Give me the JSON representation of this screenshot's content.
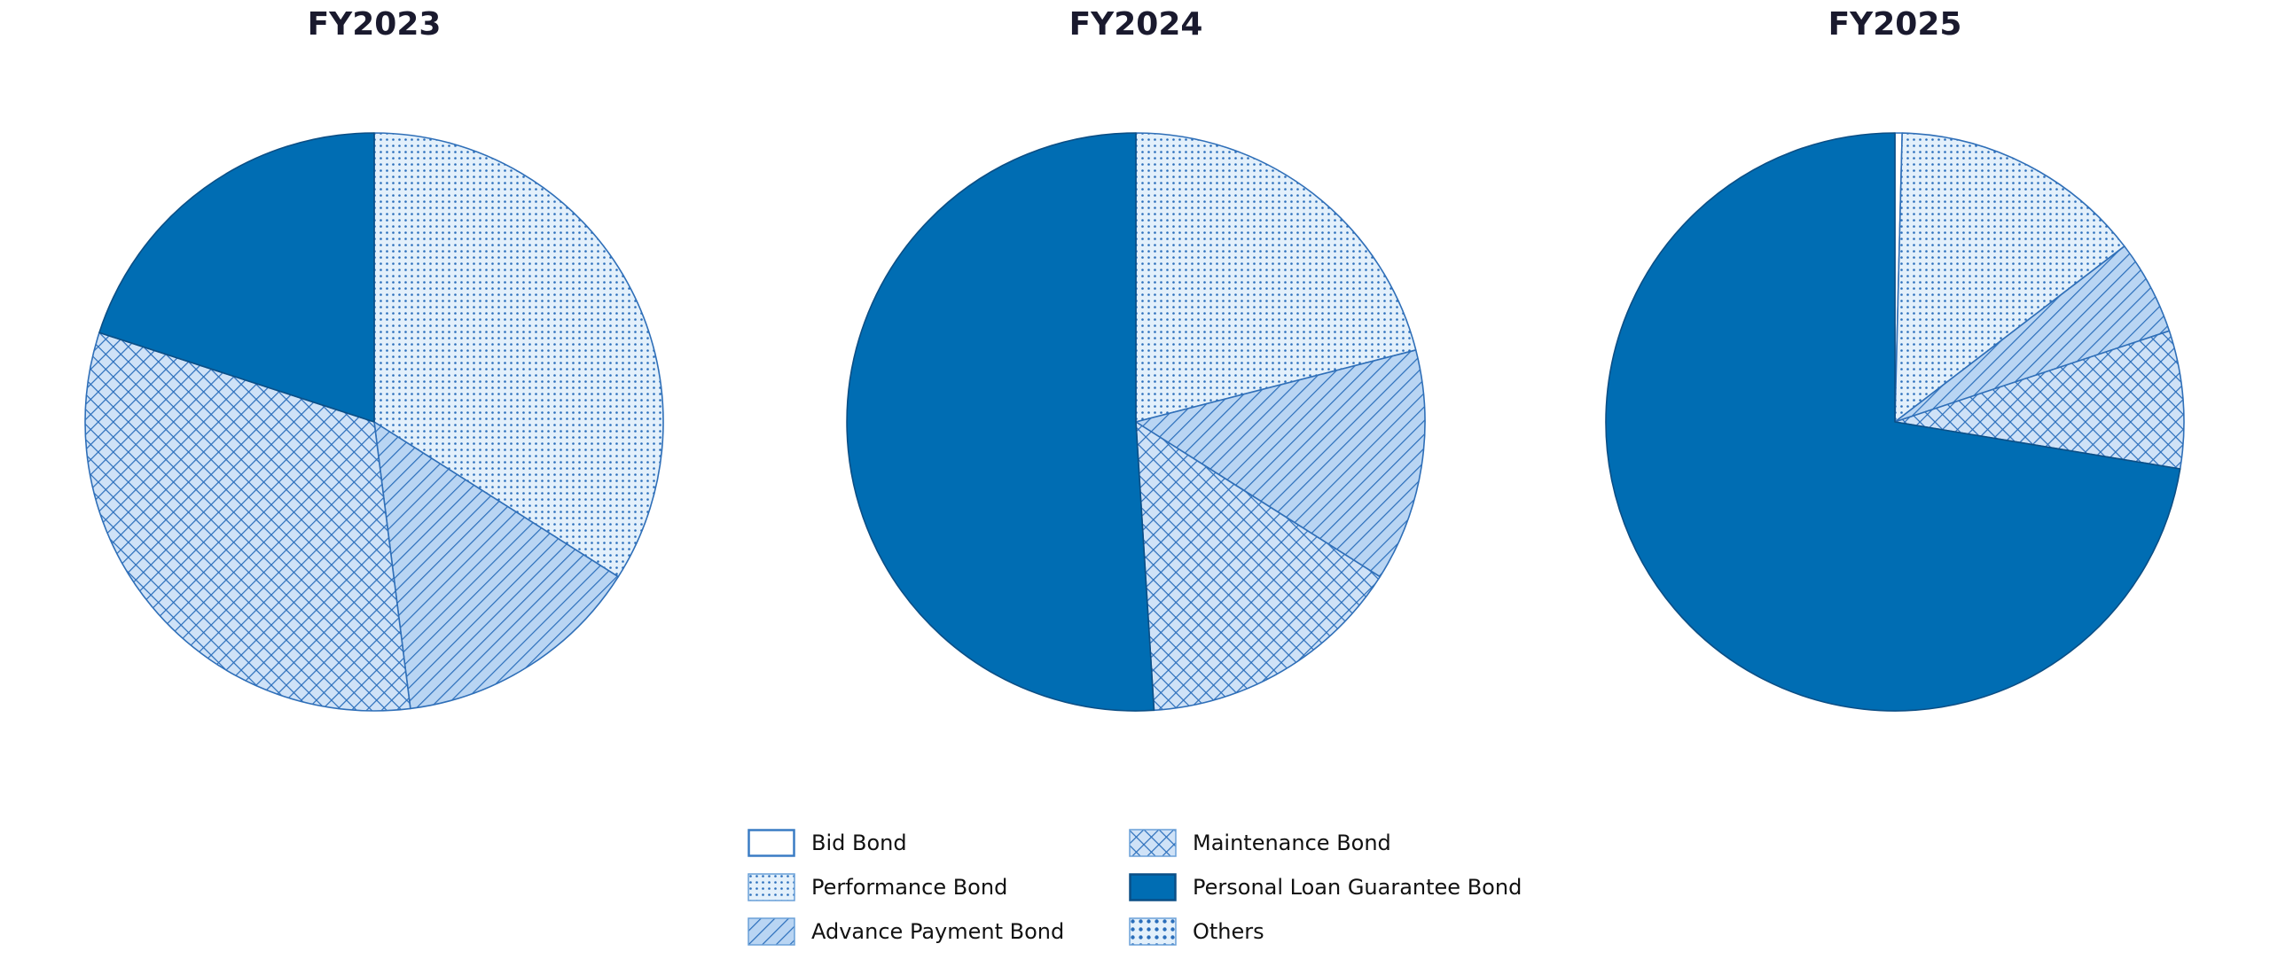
{
  "chart_data": {
    "type": "pie",
    "categories": [
      "Bid Bond",
      "Performance Bond",
      "Advance Payment Bond",
      "Maintenance Bond",
      "Personal Loan Guarantee Bond",
      "Others"
    ],
    "charts": [
      {
        "title": "FY2023",
        "values": [
          0,
          34,
          14,
          32,
          20,
          0
        ]
      },
      {
        "title": "FY2024",
        "values": [
          0,
          21,
          13,
          15,
          51,
          0
        ]
      },
      {
        "title": "FY2025",
        "values": [
          0.4,
          14.2,
          5.3,
          7.7,
          72.4,
          0
        ]
      }
    ],
    "start_angle": "90 deg (12 o'clock)",
    "direction": "clockwise",
    "legend_position": "bottom center, 2 columns"
  },
  "titles": [
    "FY2023",
    "FY2024",
    "FY2025"
  ],
  "legend": {
    "items": [
      {
        "label": "Bid Bond",
        "style": "bid"
      },
      {
        "label": "Performance Bond",
        "style": "perf"
      },
      {
        "label": "Advance Payment Bond",
        "style": "adv"
      },
      {
        "label": "Maintenance Bond",
        "style": "maint"
      },
      {
        "label": "Personal Loan Guarantee Bond",
        "style": "personal"
      },
      {
        "label": "Others",
        "style": "others"
      }
    ]
  },
  "colors": {
    "edge": "#2f6fb8",
    "hatch": "#2a6ebb",
    "perf_bg": "#e3f0fb",
    "adv_bg": "#b9d5f3",
    "maint_bg": "#cfe2f7",
    "personal": "#006db3",
    "personal_edge": "#0b4f86",
    "title": "#1a1a2e"
  }
}
